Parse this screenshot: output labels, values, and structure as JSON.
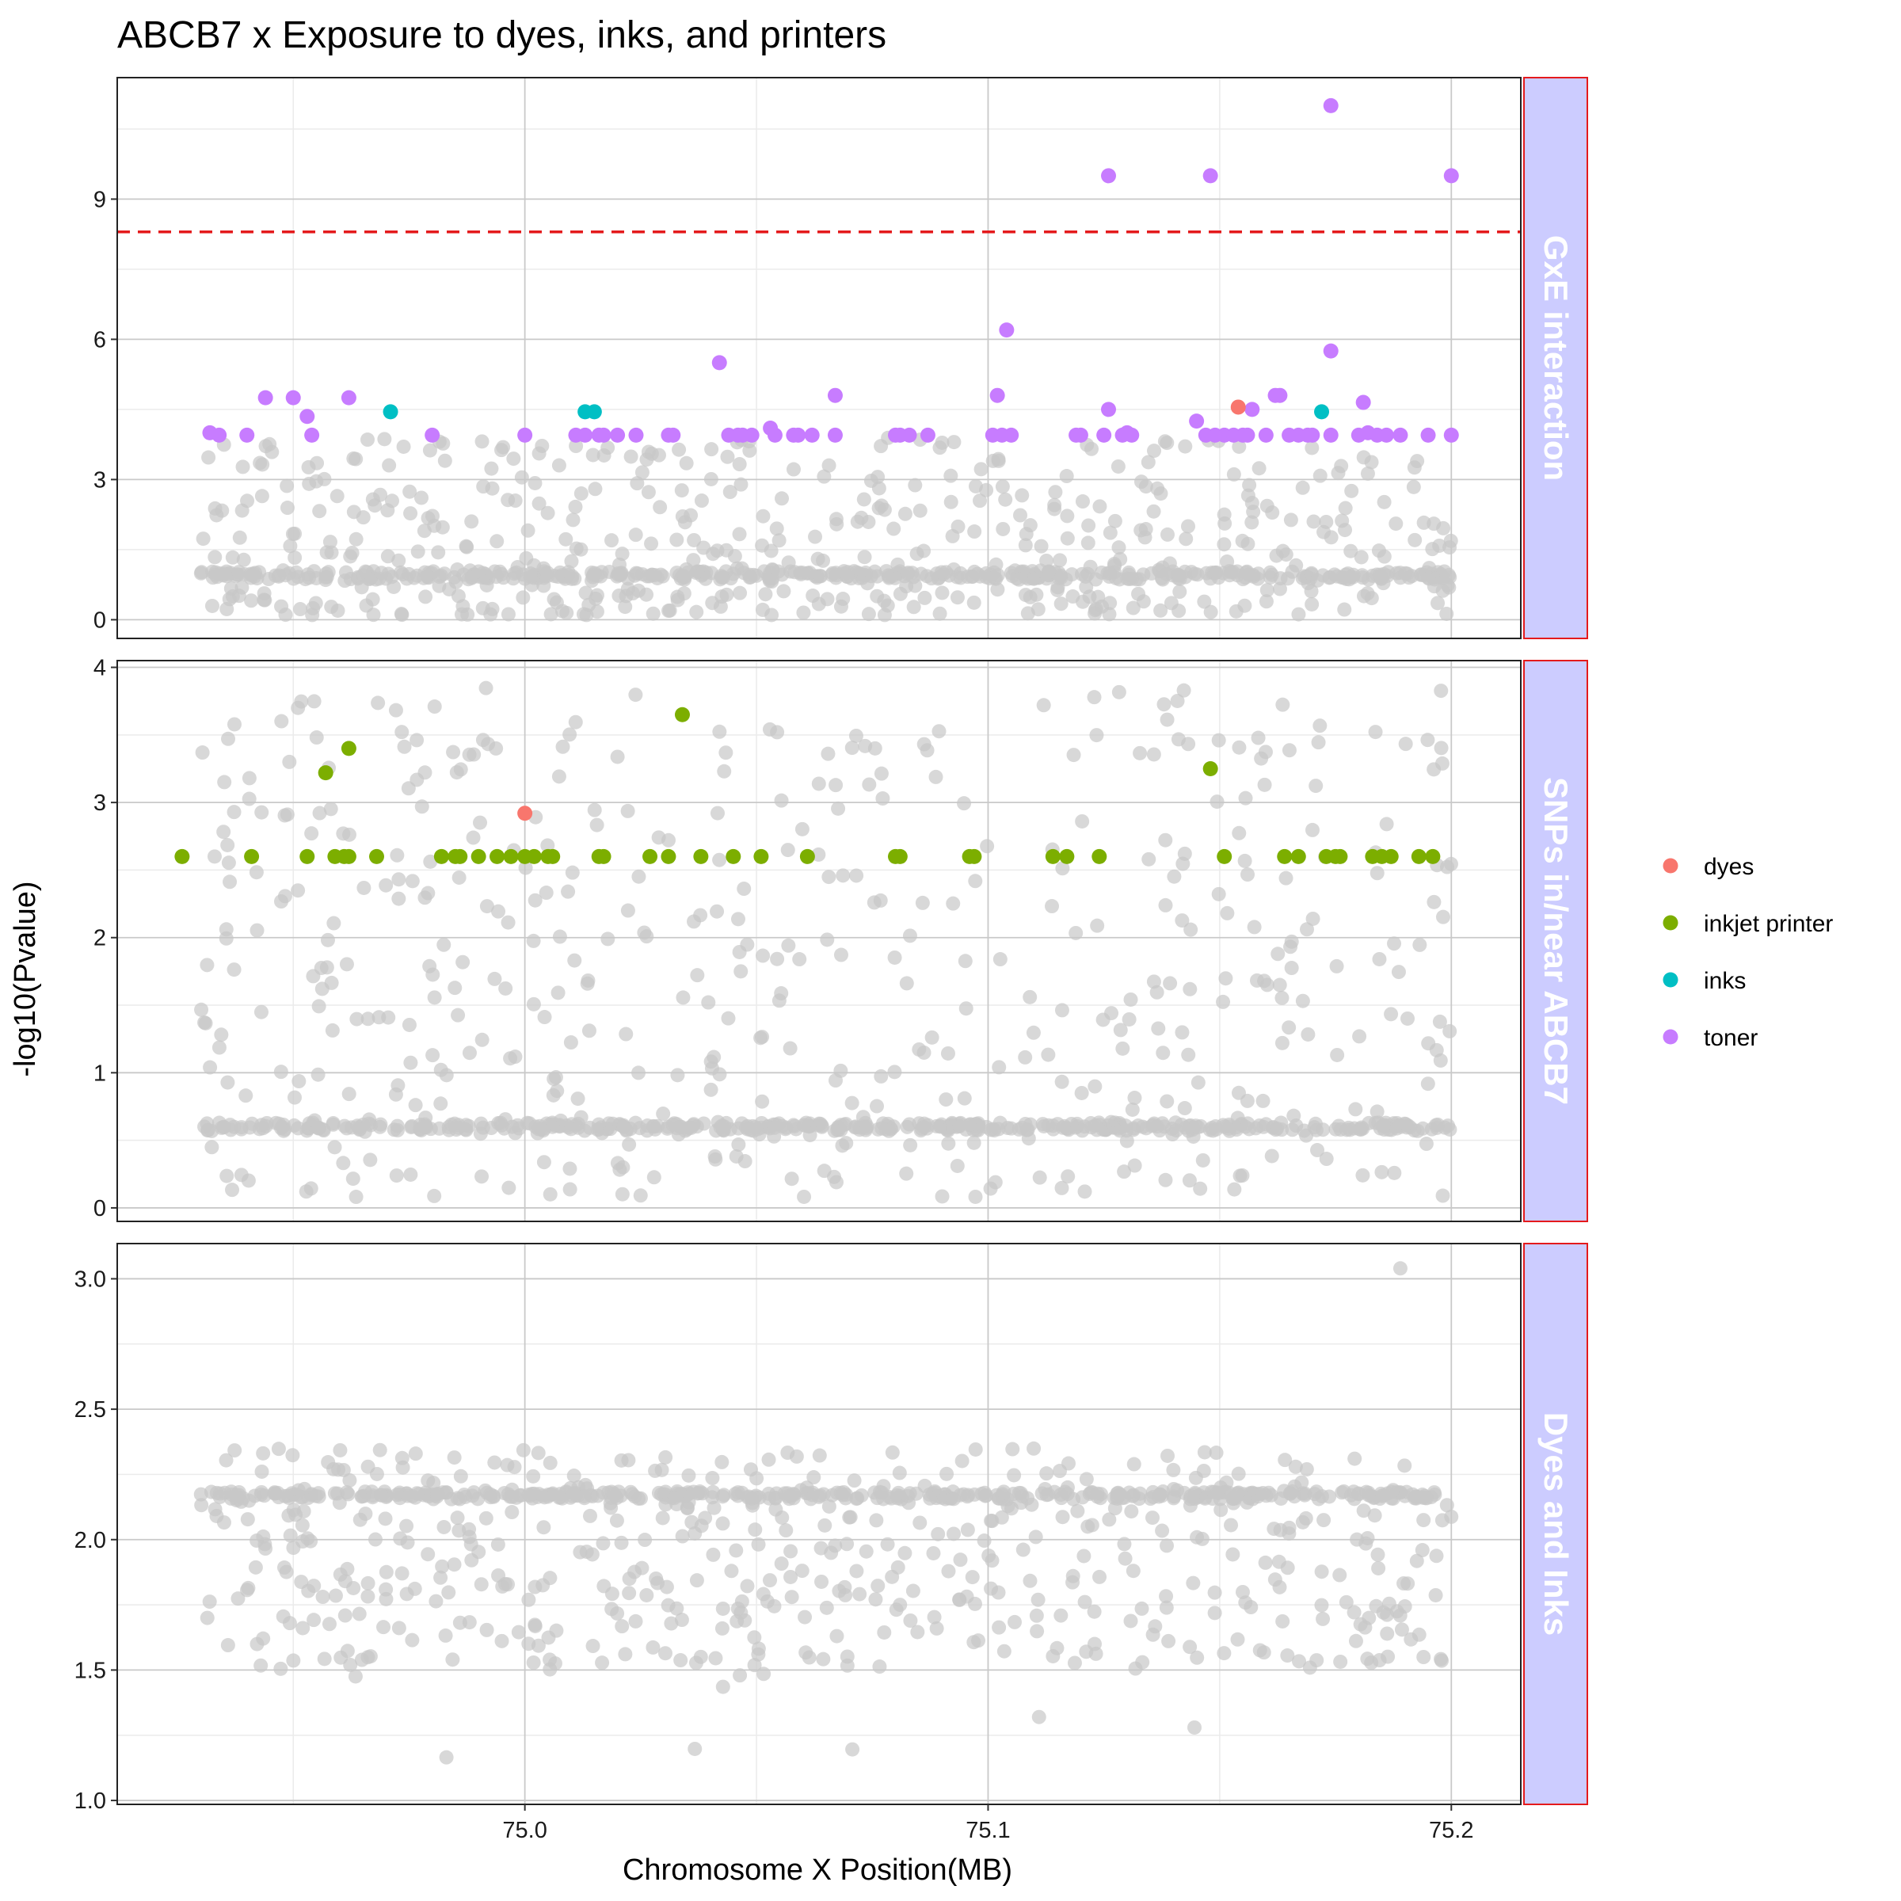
{
  "chart_data": {
    "type": "scatter",
    "title": "ABCB7 x Exposure to dyes, inks, and printers",
    "xlabel": "Chromosome X Position(MB)",
    "ylabel": "-log10(Pvalue)",
    "xlim": [
      74.912,
      75.215
    ],
    "x_ticks": [
      75.0,
      75.1,
      75.2
    ],
    "x_tick_labels": [
      "75.0",
      "75.1",
      "75.2"
    ],
    "grid": true,
    "legend_position": "right",
    "background_points_color": "#c8c8c8",
    "series": [
      {
        "name": "dyes",
        "color": "#F8766D"
      },
      {
        "name": "inkjet printer",
        "color": "#7CAE00"
      },
      {
        "name": "inks",
        "color": "#00BFC4"
      },
      {
        "name": "toner",
        "color": "#C77CFF"
      }
    ],
    "panels": [
      {
        "strip_label": "GxE interaction",
        "ylim": [
          -0.4,
          11.6
        ],
        "y_ticks": [
          0,
          3,
          6,
          9
        ],
        "y_tick_labels": [
          "0",
          "3",
          "6",
          "9"
        ],
        "threshold": 8.3,
        "threshold_color": "#E41A1C",
        "background": {
          "x_start": 74.93,
          "x_end": 75.2,
          "baseline": 0.95,
          "min": 0.1,
          "max": 3.9,
          "bands": [
            {
              "y": 0.95,
              "n": 180
            },
            {
              "y": 0.1,
              "n": 0
            }
          ]
        },
        "highlighted": [
          {
            "series": "toner",
            "points": [
              [
                74.932,
                4.0
              ],
              [
                74.934,
                3.95
              ],
              [
                74.94,
                3.95
              ],
              [
                74.944,
                4.75
              ],
              [
                74.95,
                4.75
              ],
              [
                74.953,
                4.35
              ],
              [
                74.954,
                3.95
              ],
              [
                74.962,
                4.75
              ],
              [
                74.98,
                3.95
              ],
              [
                75.0,
                3.95
              ],
              [
                75.011,
                3.95
              ],
              [
                75.013,
                3.95
              ],
              [
                75.016,
                3.95
              ],
              [
                75.017,
                3.95
              ],
              [
                75.02,
                3.95
              ],
              [
                75.024,
                3.95
              ],
              [
                75.031,
                3.95
              ],
              [
                75.032,
                3.95
              ],
              [
                75.042,
                5.5
              ],
              [
                75.044,
                3.95
              ],
              [
                75.046,
                3.95
              ],
              [
                75.047,
                3.95
              ],
              [
                75.049,
                3.95
              ],
              [
                75.053,
                4.1
              ],
              [
                75.054,
                3.95
              ],
              [
                75.058,
                3.95
              ],
              [
                75.059,
                3.95
              ],
              [
                75.062,
                3.95
              ],
              [
                75.067,
                3.95
              ],
              [
                75.067,
                4.8
              ],
              [
                75.08,
                3.95
              ],
              [
                75.081,
                3.95
              ],
              [
                75.083,
                3.95
              ],
              [
                75.087,
                3.95
              ],
              [
                75.101,
                3.95
              ],
              [
                75.102,
                4.8
              ],
              [
                75.103,
                3.95
              ],
              [
                75.104,
                6.2
              ],
              [
                75.105,
                3.95
              ],
              [
                75.119,
                3.95
              ],
              [
                75.12,
                3.95
              ],
              [
                75.125,
                3.95
              ],
              [
                75.126,
                4.5
              ],
              [
                75.126,
                9.5
              ],
              [
                75.129,
                3.95
              ],
              [
                75.13,
                4.0
              ],
              [
                75.131,
                3.95
              ],
              [
                75.145,
                4.25
              ],
              [
                75.147,
                3.95
              ],
              [
                75.148,
                9.5
              ],
              [
                75.149,
                3.95
              ],
              [
                75.151,
                3.95
              ],
              [
                75.153,
                3.95
              ],
              [
                75.155,
                3.95
              ],
              [
                75.156,
                3.95
              ],
              [
                75.157,
                4.5
              ],
              [
                75.16,
                3.95
              ],
              [
                75.162,
                4.8
              ],
              [
                75.163,
                4.8
              ],
              [
                75.165,
                3.95
              ],
              [
                75.167,
                3.95
              ],
              [
                75.169,
                3.95
              ],
              [
                75.17,
                3.95
              ],
              [
                75.174,
                3.95
              ],
              [
                75.174,
                5.75
              ],
              [
                75.174,
                11.0
              ],
              [
                75.18,
                3.95
              ],
              [
                75.181,
                4.65
              ],
              [
                75.182,
                4.0
              ],
              [
                75.184,
                3.95
              ],
              [
                75.186,
                3.95
              ],
              [
                75.189,
                3.95
              ],
              [
                75.195,
                3.95
              ],
              [
                75.2,
                3.95
              ],
              [
                75.2,
                9.5
              ]
            ]
          },
          {
            "series": "inks",
            "points": [
              [
                74.971,
                4.45
              ],
              [
                75.013,
                4.45
              ],
              [
                75.015,
                4.45
              ],
              [
                75.172,
                4.45
              ]
            ]
          },
          {
            "series": "dyes",
            "points": [
              [
                75.154,
                4.55
              ]
            ]
          }
        ]
      },
      {
        "strip_label": "SNPs in/near ABCB7",
        "ylim": [
          -0.1,
          4.05
        ],
        "y_ticks": [
          0,
          1,
          2,
          3,
          4
        ],
        "y_tick_labels": [
          "0",
          "1",
          "2",
          "3",
          "4"
        ],
        "background": {
          "x_start": 74.93,
          "x_end": 75.2,
          "baseline": 0.6,
          "min": 0.08,
          "max": 3.85,
          "bands": [
            {
              "y": 0.6,
              "n": 180
            }
          ]
        },
        "highlighted": [
          {
            "series": "inkjet printer",
            "points": [
              [
                74.926,
                2.6
              ],
              [
                74.941,
                2.6
              ],
              [
                74.953,
                2.6
              ],
              [
                74.957,
                3.22
              ],
              [
                74.959,
                2.6
              ],
              [
                74.961,
                2.6
              ],
              [
                74.962,
                3.4
              ],
              [
                74.962,
                2.6
              ],
              [
                74.968,
                2.6
              ],
              [
                74.982,
                2.6
              ],
              [
                74.985,
                2.6
              ],
              [
                74.986,
                2.6
              ],
              [
                74.99,
                2.6
              ],
              [
                74.994,
                2.6
              ],
              [
                74.997,
                2.6
              ],
              [
                75.0,
                2.6
              ],
              [
                75.002,
                2.6
              ],
              [
                75.005,
                2.6
              ],
              [
                75.006,
                2.6
              ],
              [
                75.016,
                2.6
              ],
              [
                75.017,
                2.6
              ],
              [
                75.027,
                2.6
              ],
              [
                75.031,
                2.6
              ],
              [
                75.034,
                3.65
              ],
              [
                75.038,
                2.6
              ],
              [
                75.045,
                2.6
              ],
              [
                75.051,
                2.6
              ],
              [
                75.061,
                2.6
              ],
              [
                75.08,
                2.6
              ],
              [
                75.081,
                2.6
              ],
              [
                75.096,
                2.6
              ],
              [
                75.097,
                2.6
              ],
              [
                75.114,
                2.6
              ],
              [
                75.117,
                2.6
              ],
              [
                75.124,
                2.6
              ],
              [
                75.148,
                3.25
              ],
              [
                75.151,
                2.6
              ],
              [
                75.164,
                2.6
              ],
              [
                75.167,
                2.6
              ],
              [
                75.173,
                2.6
              ],
              [
                75.175,
                2.6
              ],
              [
                75.176,
                2.6
              ],
              [
                75.183,
                2.6
              ],
              [
                75.185,
                2.6
              ],
              [
                75.187,
                2.6
              ],
              [
                75.193,
                2.6
              ],
              [
                75.196,
                2.6
              ]
            ]
          },
          {
            "series": "dyes",
            "points": [
              [
                75.0,
                2.92
              ]
            ]
          }
        ]
      },
      {
        "strip_label": "Dyes and Inks",
        "ylim": [
          0.985,
          3.135
        ],
        "y_ticks": [
          1.0,
          1.5,
          2.0,
          2.5,
          3.0
        ],
        "y_tick_labels": [
          "1.0",
          "1.5",
          "2.0",
          "2.5",
          "3.0"
        ],
        "background": {
          "x_start": 74.93,
          "x_end": 75.2,
          "baseline": 2.17,
          "min": 1.08,
          "max": 3.04,
          "bands": [
            {
              "y": 2.17,
              "n": 180
            }
          ]
        },
        "highlighted": []
      }
    ]
  }
}
